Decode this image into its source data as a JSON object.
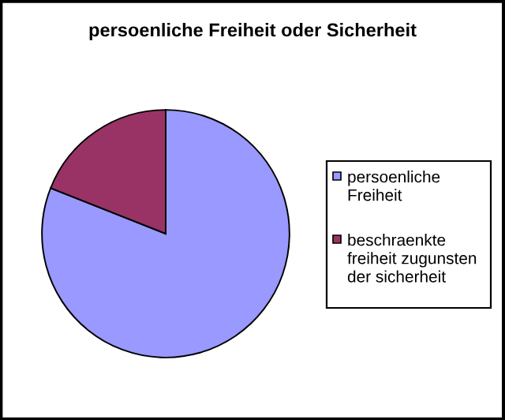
{
  "chart_data": {
    "type": "pie",
    "title": "persoenliche Freiheit oder Sicherheit",
    "categories": [
      "persoenliche Freiheit",
      "beschraenkte freiheit zugunsten der sicherheit"
    ],
    "values": [
      81,
      19
    ],
    "colors": [
      "#9999ff",
      "#993366"
    ],
    "legend": "right"
  }
}
